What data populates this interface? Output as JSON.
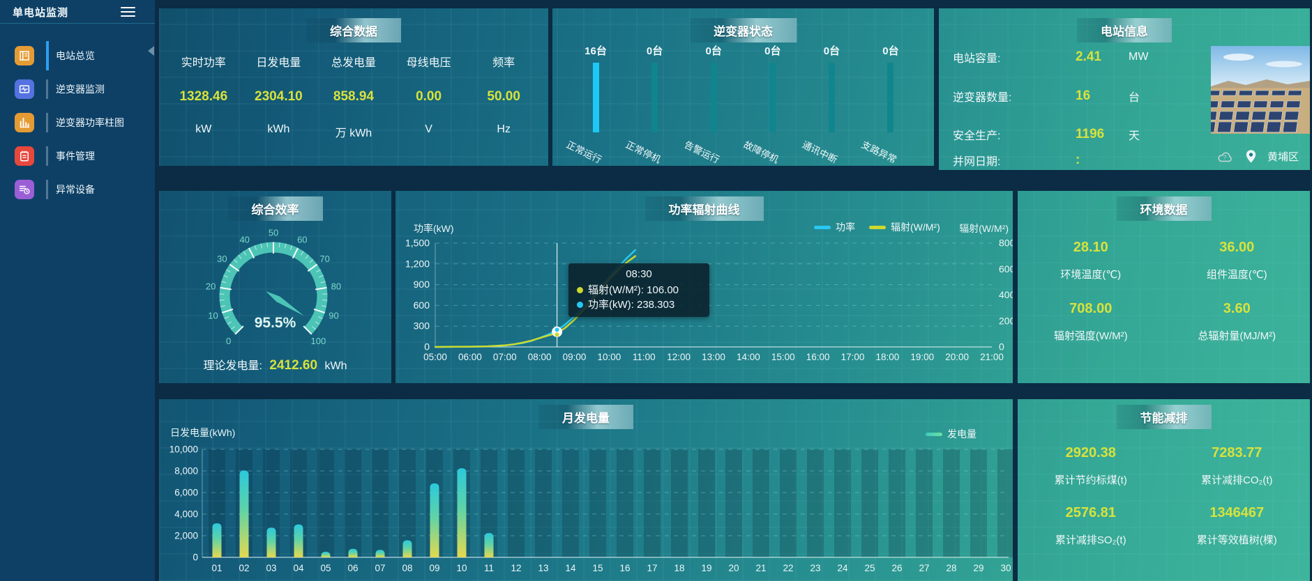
{
  "app": {
    "title": "单电站监测"
  },
  "sidebar": {
    "items": [
      {
        "label": "电站总览",
        "icon": "report-icon",
        "color": "#e59b34",
        "active": true
      },
      {
        "label": "逆变器监测",
        "icon": "monitor-icon",
        "color": "#5472e0",
        "active": false
      },
      {
        "label": "逆变器功率柱图",
        "icon": "bar-chart-icon",
        "color": "#e59b34",
        "active": false
      },
      {
        "label": "事件管理",
        "icon": "event-icon",
        "color": "#e8473c",
        "active": false
      },
      {
        "label": "异常设备",
        "icon": "device-icon",
        "color": "#9a5fd6",
        "active": false
      }
    ]
  },
  "panels": {
    "summary": {
      "title": "综合数据",
      "metrics": [
        {
          "label": "实时功率",
          "value": "1328.46",
          "unit": "kW"
        },
        {
          "label": "日发电量",
          "value": "2304.10",
          "unit": "kWh"
        },
        {
          "label": "总发电量",
          "value": "858.94",
          "unit": "万 kWh"
        },
        {
          "label": "母线电压",
          "value": "0.00",
          "unit": "V"
        },
        {
          "label": "频率",
          "value": "50.00",
          "unit": "Hz"
        }
      ]
    },
    "inverter_status": {
      "title": "逆变器状态"
    },
    "station_info": {
      "title": "电站信息",
      "rows": [
        {
          "label": "电站容量:",
          "value": "2.41",
          "unit": "MW"
        },
        {
          "label": "逆变器数量:",
          "value": "16",
          "unit": "台"
        },
        {
          "label": "安全生产:",
          "value": "1196",
          "unit": "天"
        },
        {
          "label": "并网日期:",
          "value": ":",
          "unit": ""
        }
      ],
      "location": "黄埔区"
    },
    "efficiency": {
      "title": "综合效率",
      "value_label": "95.5%",
      "theory_label": "理论发电量:",
      "theory_value": "2412.60",
      "theory_unit": "kWh"
    },
    "power_curve": {
      "title": "功率辐射曲线",
      "tooltip": {
        "title": "08:30",
        "rows": [
          {
            "color": "#cdd92e",
            "text": "辐射(W/M²): 106.00"
          },
          {
            "color": "#29c8f2",
            "text": "功率(kW): 238.303"
          }
        ]
      }
    },
    "environment": {
      "title": "环境数据",
      "metrics": [
        {
          "value": "28.10",
          "label": "环境温度(℃)"
        },
        {
          "value": "36.00",
          "label": "组件温度(℃)"
        },
        {
          "value": "708.00",
          "label": "辐射强度(W/M²)"
        },
        {
          "value": "3.60",
          "label": "总辐射量(MJ/M²)"
        }
      ]
    },
    "monthly": {
      "title": "月发电量"
    },
    "saving": {
      "title": "节能减排",
      "metrics": [
        {
          "value": "2920.38",
          "label": "累计节约标煤(t)"
        },
        {
          "value": "7283.77",
          "label": "累计减排CO₂(t)"
        },
        {
          "value": "2576.81",
          "label": "累计减排SO₂(t)"
        },
        {
          "value": "1346467",
          "label": "累计等效植树(棵)"
        }
      ]
    }
  },
  "chart_data": [
    {
      "id": "efficiency-gauge",
      "type": "gauge",
      "title": "综合效率",
      "min": 0,
      "max": 100,
      "value": 95.5,
      "value_label": "95.5%",
      "tick_labels": [
        "0",
        "10",
        "20",
        "30",
        "40",
        "50",
        "60",
        "70",
        "80",
        "90",
        "100"
      ],
      "band_color": "#4cc4b6"
    },
    {
      "id": "power-radiation",
      "type": "line",
      "title": "功率辐射曲线",
      "x_range_hours": [
        5,
        21
      ],
      "x_label_ticks": [
        "05:00",
        "06:00",
        "07:00",
        "08:00",
        "09:00",
        "10:00",
        "11:00",
        "12:00",
        "13:00",
        "14:00",
        "15:00",
        "16:00",
        "17:00",
        "18:00",
        "19:00",
        "20:00",
        "21:00"
      ],
      "left_axis": {
        "name": "功率(kW)",
        "ticks": [
          "0",
          "300",
          "600",
          "900",
          "1,200",
          "1,500"
        ],
        "max": 1500
      },
      "right_axis": {
        "name": "辐射(W/M²)",
        "ticks": [
          "0",
          "200",
          "400",
          "600",
          "800"
        ],
        "max": 800
      },
      "legend": [
        {
          "name": "功率",
          "color": "#29c8f2"
        },
        {
          "name": "辐射(W/M²)",
          "color": "#cdd92e"
        }
      ],
      "pointer": {
        "time": "08:30",
        "x_hour": 8.5,
        "power": 238.303,
        "radiation": 106.0
      },
      "series": [
        {
          "name": "功率",
          "axis": "left",
          "color": "#29c8f2",
          "x_hours": [
            5,
            5.5,
            6,
            6.5,
            7,
            7.25,
            7.5,
            7.75,
            8,
            8.25,
            8.5,
            8.75,
            9,
            9.25,
            9.5,
            9.75,
            10,
            10.25,
            10.5,
            10.75
          ],
          "values": [
            0,
            1,
            3,
            8,
            22,
            35,
            55,
            85,
            130,
            180,
            238.3,
            330,
            440,
            570,
            710,
            860,
            1010,
            1150,
            1280,
            1400
          ]
        },
        {
          "name": "辐射(W/M²)",
          "axis": "right",
          "color": "#cdd92e",
          "x_hours": [
            5,
            5.5,
            6,
            6.5,
            7,
            7.25,
            7.5,
            7.75,
            8,
            8.25,
            8.5,
            8.75,
            9,
            9.25,
            9.5,
            9.75,
            10,
            10.25,
            10.5,
            10.75
          ],
          "values": [
            0,
            1,
            2,
            5,
            12,
            20,
            32,
            48,
            68,
            88,
            106,
            150,
            210,
            280,
            360,
            440,
            520,
            590,
            650,
            700
          ]
        }
      ],
      "grid": "dashed-horizontal",
      "legend_position": "top-right"
    },
    {
      "id": "monthly-energy",
      "type": "bar",
      "title": "月发电量",
      "y_label": "日发电量(kWh)",
      "y_ticks": [
        "0",
        "2,000",
        "4,000",
        "6,000",
        "8,000",
        "10,000"
      ],
      "y_max": 10000,
      "legend": "发电量",
      "legend_color": "#62d6a5",
      "categories": [
        "01",
        "02",
        "03",
        "04",
        "05",
        "06",
        "07",
        "08",
        "09",
        "10",
        "11",
        "12",
        "13",
        "14",
        "15",
        "16",
        "17",
        "18",
        "19",
        "20",
        "21",
        "22",
        "23",
        "24",
        "25",
        "26",
        "27",
        "28",
        "29",
        "30"
      ],
      "values": [
        3150,
        8050,
        2750,
        3050,
        520,
        790,
        690,
        1580,
        6850,
        8250,
        2250,
        0,
        0,
        0,
        0,
        0,
        0,
        0,
        0,
        0,
        0,
        0,
        0,
        0,
        0,
        0,
        0,
        0,
        0,
        0
      ]
    },
    {
      "id": "inverter-status",
      "type": "bar",
      "title": "逆变器状态",
      "unit": "台",
      "categories": [
        "正常运行",
        "正常停机",
        "告警运行",
        "故障停机",
        "通讯中断",
        "支路异常"
      ],
      "counts": [
        "16台",
        "0台",
        "0台",
        "0台",
        "0台",
        "0台"
      ],
      "values": [
        16,
        0,
        0,
        0,
        0,
        0
      ],
      "max": 16,
      "highlight_color": "#1fc7f5",
      "track_color": "#10858d"
    }
  ]
}
